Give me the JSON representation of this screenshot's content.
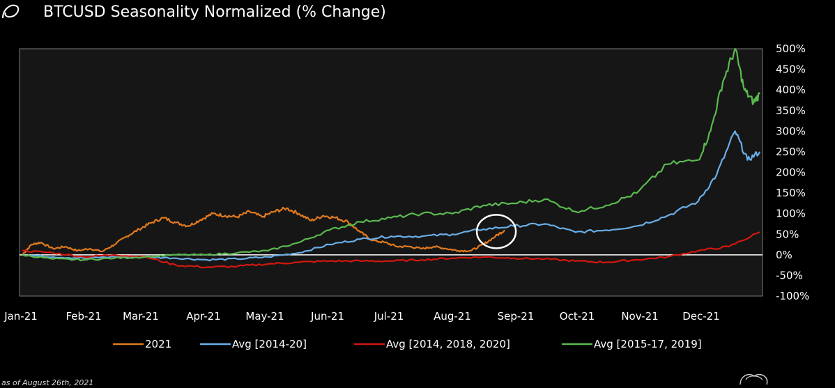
{
  "header": {
    "title": "BTCUSD Seasonality Normalized (% Change)"
  },
  "footer": {
    "note": "as of August 26th, 2021"
  },
  "colors": {
    "background": "#000000",
    "plot_background": "#161616",
    "axis": "#ffffff",
    "series_2021": "#e07a1f",
    "series_avg_2014_20": "#6aaee8",
    "series_avg_2014_2018_2020": "#d2180e",
    "series_avg_2015_17_2019": "#5ab94f",
    "highlight_circle": "#ffffff"
  },
  "chart_data": {
    "type": "line",
    "title": "BTCUSD Seasonality Normalized (% Change)",
    "xlabel": "",
    "ylabel": "",
    "x_ticks": [
      "Jan-21",
      "Feb-21",
      "Mar-21",
      "Apr-21",
      "May-21",
      "Jun-21",
      "Jul-21",
      "Aug-21",
      "Sep-21",
      "Oct-21",
      "Nov-21",
      "Dec-21"
    ],
    "y_ticks": [
      "500%",
      "450%",
      "400%",
      "350%",
      "300%",
      "250%",
      "200%",
      "150%",
      "100%",
      "50%",
      "0%",
      "-50%",
      "-100%"
    ],
    "ylim": [
      -100,
      500
    ],
    "xlim": [
      0,
      12
    ],
    "grid": false,
    "zero_line": true,
    "legend_position": "bottom",
    "series": [
      {
        "name": "2021",
        "color": "#e07a1f",
        "x": [
          0,
          0.15,
          0.3,
          0.5,
          0.7,
          0.9,
          1.1,
          1.3,
          1.5,
          1.7,
          1.9,
          2.1,
          2.3,
          2.5,
          2.7,
          2.9,
          3.1,
          3.3,
          3.5,
          3.7,
          3.9,
          4.1,
          4.3,
          4.5,
          4.7,
          4.9,
          5.1,
          5.3,
          5.5,
          5.7,
          5.9,
          6.1,
          6.3,
          6.5,
          6.7,
          6.9,
          7.1,
          7.3,
          7.5,
          7.7,
          7.85
        ],
        "y": [
          0,
          25,
          30,
          15,
          20,
          10,
          15,
          8,
          25,
          45,
          62,
          78,
          90,
          78,
          70,
          85,
          100,
          95,
          92,
          105,
          92,
          105,
          113,
          100,
          83,
          95,
          90,
          80,
          55,
          35,
          30,
          20,
          20,
          15,
          20,
          15,
          10,
          10,
          25,
          45,
          60
        ]
      },
      {
        "name": "Avg [2014-20]",
        "color": "#6aaee8",
        "x": [
          0,
          0.5,
          1,
          1.5,
          2,
          2.5,
          3,
          3.5,
          4,
          4.5,
          5,
          5.5,
          6,
          6.5,
          7,
          7.5,
          8,
          8.5,
          9,
          9.5,
          10,
          10.5,
          11,
          11.3,
          11.6,
          11.8,
          12
        ],
        "y": [
          0,
          -5,
          -8,
          -5,
          -5,
          -8,
          -12,
          -10,
          -5,
          5,
          25,
          38,
          45,
          45,
          50,
          62,
          70,
          75,
          55,
          60,
          70,
          95,
          130,
          195,
          300,
          230,
          250
        ]
      },
      {
        "name": "Avg [2014, 2018, 2020]",
        "color": "#d2180e",
        "x": [
          0,
          0.5,
          1,
          1.5,
          2,
          2.5,
          3,
          3.5,
          4,
          4.5,
          5,
          5.5,
          6,
          6.5,
          7,
          7.5,
          8,
          8.5,
          9,
          9.5,
          10,
          10.5,
          11,
          11.5,
          12
        ],
        "y": [
          10,
          5,
          -5,
          0,
          -5,
          -25,
          -30,
          -28,
          -22,
          -18,
          -15,
          -15,
          -15,
          -12,
          -8,
          -5,
          -8,
          -10,
          -15,
          -18,
          -12,
          -5,
          10,
          20,
          55
        ]
      },
      {
        "name": "Avg [2015-17, 2019]",
        "color": "#5ab94f",
        "x": [
          0,
          0.5,
          1,
          1.5,
          2,
          2.5,
          3,
          3.5,
          4,
          4.5,
          5,
          5.5,
          6,
          6.5,
          7,
          7.5,
          8,
          8.5,
          9,
          9.5,
          10,
          10.5,
          11,
          11.2,
          11.4,
          11.6,
          11.75,
          11.9,
          12
        ],
        "y": [
          0,
          -10,
          -12,
          -8,
          -5,
          0,
          0,
          5,
          10,
          30,
          60,
          80,
          90,
          100,
          100,
          120,
          125,
          135,
          105,
          120,
          150,
          220,
          230,
          300,
          420,
          500,
          400,
          370,
          390
        ]
      }
    ],
    "annotations": [
      {
        "type": "circle",
        "x": 7.85,
        "y": 60
      }
    ]
  }
}
